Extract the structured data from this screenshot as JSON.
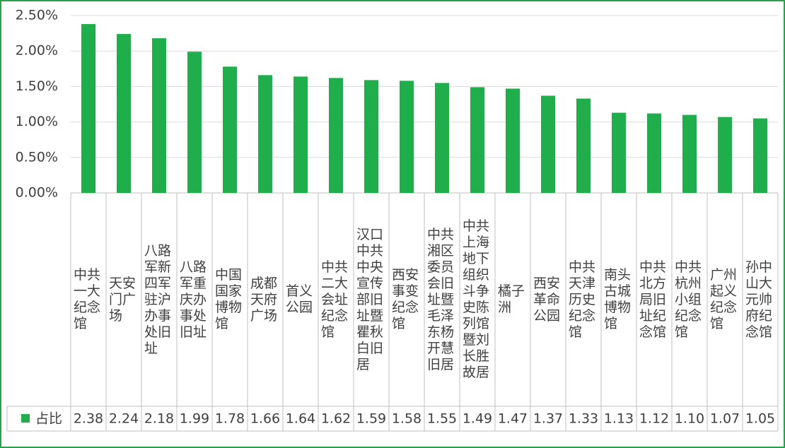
{
  "chart_data": {
    "type": "bar",
    "categories": [
      "中共一大纪念馆",
      "天安门广场",
      "八路军新四军驻沪办事处旧址",
      "八路军重庆办事处旧址",
      "中国国家博物馆",
      "成都天府广场",
      "首义公园",
      "中共二大会址纪念馆",
      "汉口中共中央宣传部旧址暨瞿秋白旧居",
      "西安事变纪念馆",
      "中共湘区委员会旧址暨毛泽东杨开慧旧居",
      "中共上海地下组织斗争史陈列馆暨刘长胜故居",
      "橘子洲",
      "西安革命公园",
      "中共天津历史纪念馆",
      "南头古城博物馆",
      "中共北方局旧址纪念馆",
      "中共杭州小组纪念馆",
      "广州起义纪念馆",
      "孙中山大元帅府纪念馆"
    ],
    "series": [
      {
        "name": "占比",
        "color": "#1fae4b",
        "values": [
          2.38,
          2.24,
          2.18,
          1.99,
          1.78,
          1.66,
          1.64,
          1.62,
          1.59,
          1.58,
          1.55,
          1.49,
          1.47,
          1.37,
          1.33,
          1.13,
          1.12,
          1.1,
          1.07,
          1.05
        ],
        "value_labels": [
          "2.38",
          "2.24",
          "2.18",
          "1.99",
          "1.78",
          "1.66",
          "1.64",
          "1.62",
          "1.59",
          "1.58",
          "1.55",
          "1.49",
          "1.47",
          "1.37",
          "1.33",
          "1.13",
          "1.12",
          "1.10",
          "1.07",
          "1.05"
        ]
      }
    ],
    "ylim": [
      0,
      2.5
    ],
    "yticks": [
      {
        "value": 0,
        "label": "0.00%"
      },
      {
        "value": 0.5,
        "label": "0.50%"
      },
      {
        "value": 1,
        "label": "1.00%"
      },
      {
        "value": 1.5,
        "label": "1.50%"
      },
      {
        "value": 2,
        "label": "2.00%"
      },
      {
        "value": 2.5,
        "label": "2.50%"
      }
    ],
    "grid": true
  }
}
